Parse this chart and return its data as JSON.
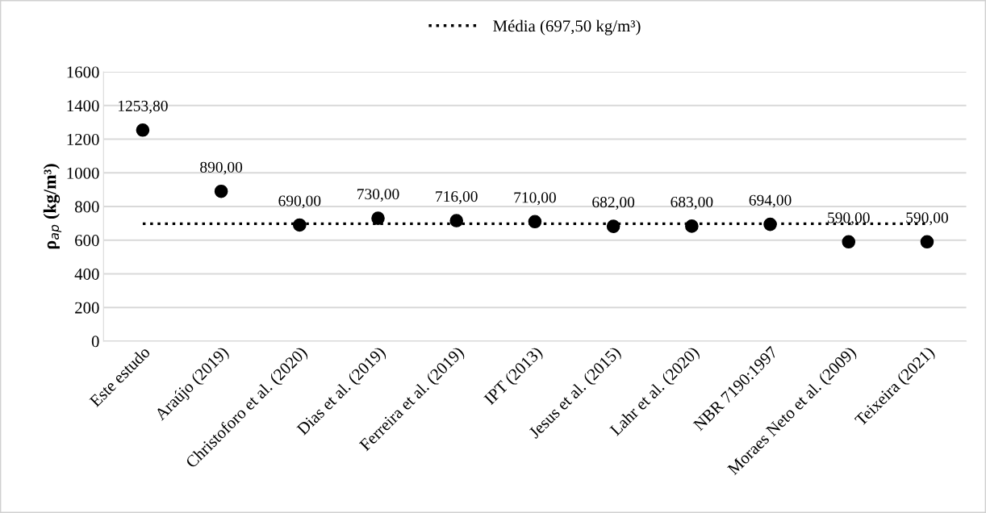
{
  "chart_data": {
    "type": "scatter",
    "categories": [
      "Este estudo",
      "Araújo (2019)",
      "Christoforo et al. (2020)",
      "Dias et al. (2019)",
      "Ferreira et al. (2019)",
      "IPT (2013)",
      "Jesus et al. (2015)",
      "Lahr et al. (2020)",
      "NBR 7190:1997",
      "Moraes Neto et al. (2009)",
      "Teixeira (2021)"
    ],
    "series": [
      {
        "color": "#000000",
        "values": [
          1253.8,
          890,
          690,
          730,
          716,
          710,
          682,
          683,
          694,
          590,
          590
        ],
        "value_labels": [
          "1253,80",
          "890,00",
          "690,00",
          "730,00",
          "716,00",
          "710,00",
          "682,00",
          "683,00",
          "694,00",
          "590,00",
          "590,00"
        ]
      }
    ],
    "ylabel": "ρ$_{ap}$ (kg/m³)",
    "ylim": [
      0,
      1600
    ],
    "yticks": [
      0,
      200,
      400,
      600,
      800,
      1000,
      1200,
      1400,
      1600
    ],
    "ref_lines": [
      {
        "axis": "y",
        "value": 697.5,
        "label": "Média (697,50 kg/m³)",
        "color": "#000000",
        "line_style": "dotted"
      }
    ],
    "grid": "y",
    "legend": "top",
    "marker": "circle"
  }
}
